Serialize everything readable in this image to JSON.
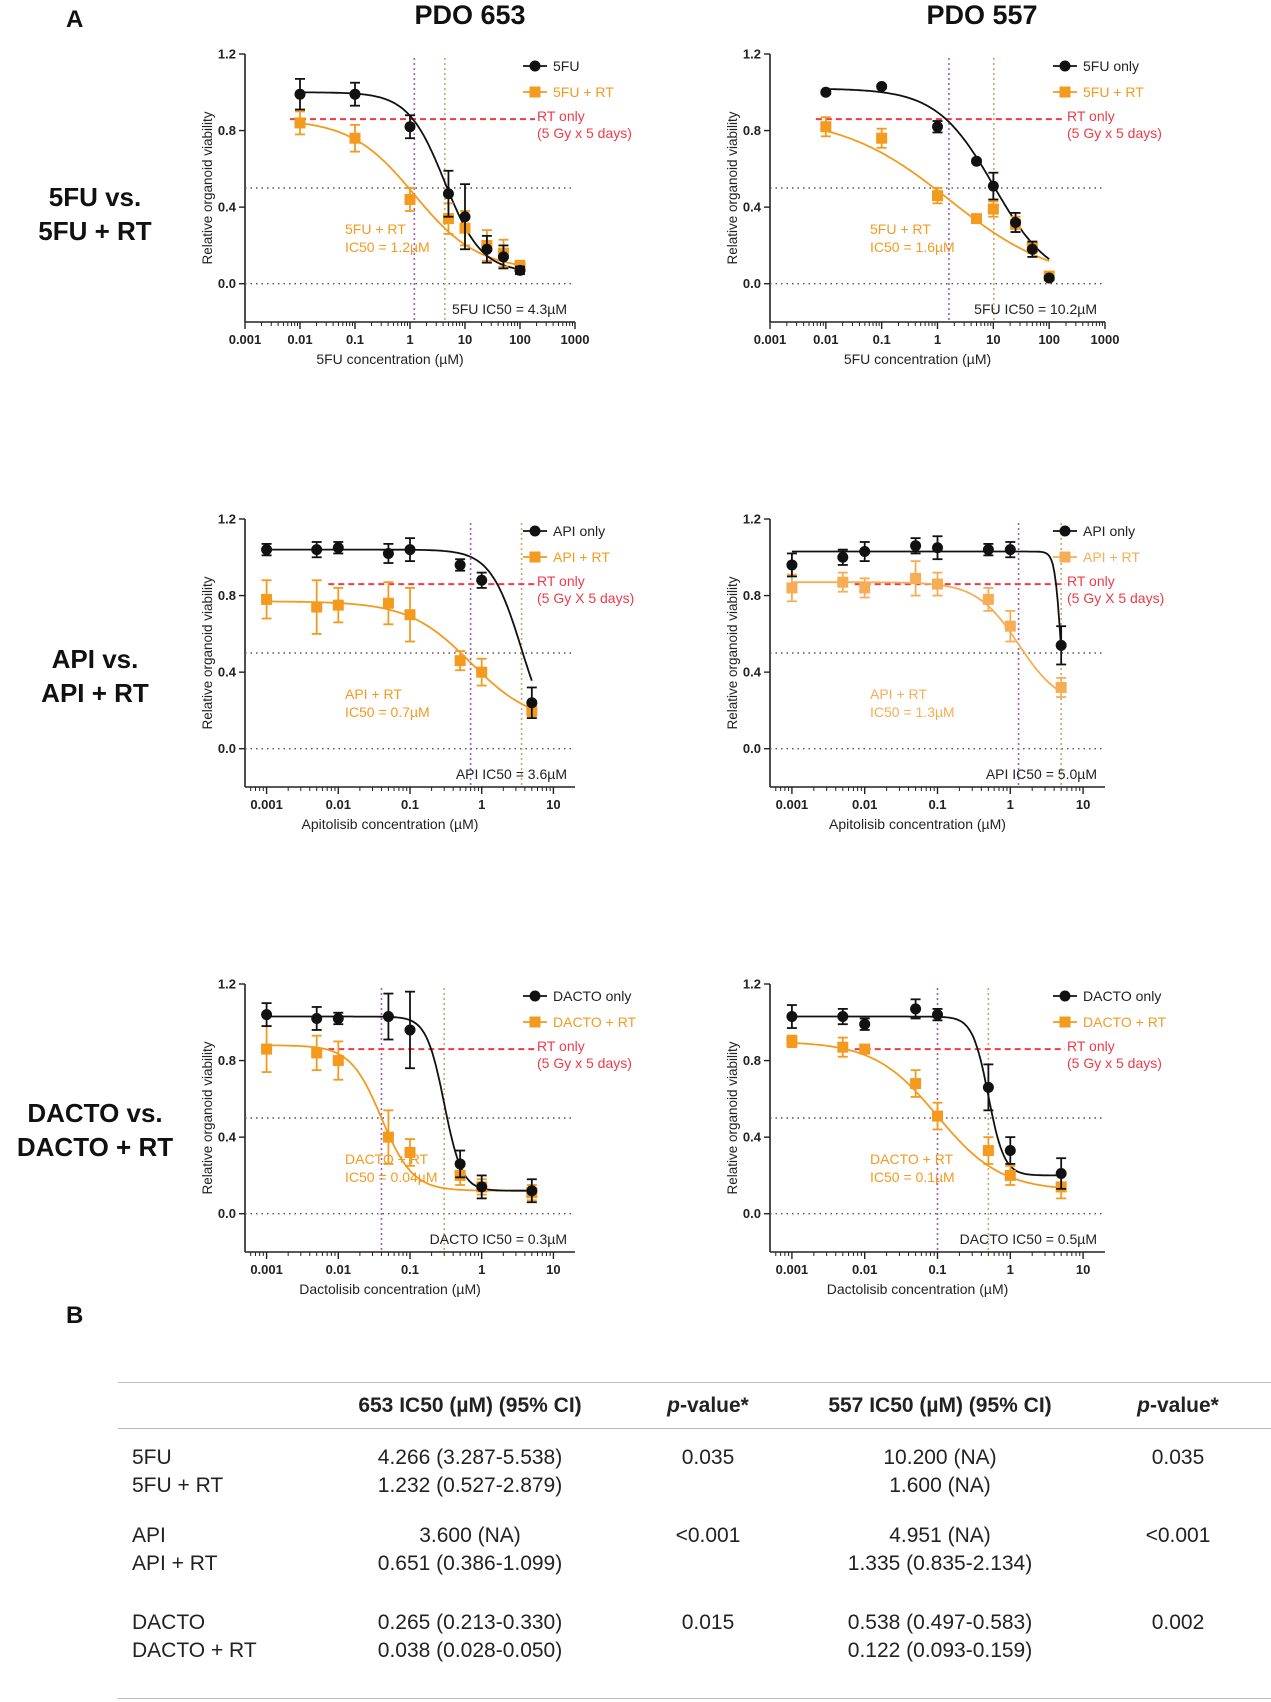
{
  "panel_labels": {
    "a": "A",
    "b": "B"
  },
  "column_titles": [
    "PDO 653",
    "PDO 557"
  ],
  "row_labels": [
    [
      "5FU vs.",
      "5FU + RT"
    ],
    [
      "API vs.",
      "API + RT"
    ],
    [
      "DACTO vs.",
      "DACTO + RT"
    ]
  ],
  "colors": {
    "drug": "#111111",
    "combo": "#f39a1f",
    "combo_light": "#f7ad55",
    "rt": "#ee3b47",
    "ic50_combo_line": "#a05cb8",
    "ic50_drug_line": "#c9a86a",
    "dotted": "#555555"
  },
  "chart_data": [
    {
      "id": "5fu-653",
      "type": "scatter",
      "ylabel": "Relative organoid viability",
      "xlabel": "5FU concentration (µM)",
      "xscale": "log",
      "xlim": [
        0.001,
        1000
      ],
      "ylim": [
        -0.2,
        1.2
      ],
      "xticks": [
        0.001,
        0.01,
        0.1,
        1,
        10,
        100,
        1000
      ],
      "xtick_labels": [
        "0.001",
        "0.01",
        "0.1",
        "1",
        "10",
        "100",
        "1000"
      ],
      "yticks": [
        0.0,
        0.4,
        0.8,
        1.2
      ],
      "ytick_labels": [
        "0.0",
        "0.4",
        "0.8",
        "1.2"
      ],
      "rt_level": 0.86,
      "rt_label": [
        "RT only",
        "(5 Gy x 5 days)"
      ],
      "series": [
        {
          "name": "5FU",
          "top": 1.0,
          "bottom": 0.06,
          "ic50": 4.3,
          "hill": 1.3,
          "x": [
            0.01,
            0.1,
            1,
            5,
            10,
            25,
            50,
            100
          ],
          "y": [
            0.99,
            0.99,
            0.82,
            0.47,
            0.35,
            0.18,
            0.14,
            0.07
          ],
          "err": [
            0.08,
            0.06,
            0.06,
            0.12,
            0.17,
            0.07,
            0.06,
            0.02
          ]
        },
        {
          "name": "5FU + RT",
          "top": 0.86,
          "bottom": 0.07,
          "ic50": 1.2,
          "hill": 0.75,
          "x": [
            0.01,
            0.1,
            1,
            5,
            10,
            25,
            50,
            100
          ],
          "y": [
            0.84,
            0.76,
            0.44,
            0.34,
            0.29,
            0.2,
            0.16,
            0.09
          ],
          "err": [
            0.06,
            0.07,
            0.06,
            0.08,
            0.09,
            0.08,
            0.07,
            0.03
          ]
        }
      ],
      "ic50_labels": {
        "combo": [
          "5FU + RT",
          "IC50 = 1.2µM"
        ],
        "drug": "5FU IC50 = 4.3µM"
      }
    },
    {
      "id": "5fu-557",
      "type": "scatter",
      "ylabel": "Relative organoid viability",
      "xlabel": "5FU concentration (µM)",
      "xscale": "log",
      "xlim": [
        0.001,
        1000
      ],
      "ylim": [
        -0.2,
        1.2
      ],
      "xticks": [
        0.001,
        0.01,
        0.1,
        1,
        10,
        100,
        1000
      ],
      "xtick_labels": [
        "0.001",
        "0.01",
        "0.1",
        "1",
        "10",
        "100",
        "1000"
      ],
      "yticks": [
        0.0,
        0.4,
        0.8,
        1.2
      ],
      "ytick_labels": [
        "0.0",
        "0.4",
        "0.8",
        "1.2"
      ],
      "rt_level": 0.86,
      "rt_label": [
        "RT only",
        "(5 Gy x 5 days)"
      ],
      "series": [
        {
          "name": "5FU only",
          "top": 1.02,
          "bottom": 0.0,
          "ic50": 10.2,
          "hill": 0.85,
          "x": [
            0.01,
            0.1,
            1,
            5,
            10,
            25,
            50,
            100
          ],
          "y": [
            1.0,
            1.03,
            0.82,
            0.64,
            0.51,
            0.32,
            0.18,
            0.03
          ],
          "err": [
            0.01,
            0.01,
            0.03,
            0.01,
            0.07,
            0.05,
            0.04,
            0.01
          ]
        },
        {
          "name": "5FU + RT",
          "top": 0.88,
          "bottom": 0.0,
          "ic50": 1.6,
          "hill": 0.45,
          "x": [
            0.01,
            0.1,
            1,
            5,
            10,
            25,
            50,
            100
          ],
          "y": [
            0.82,
            0.76,
            0.46,
            0.34,
            0.39,
            0.31,
            0.19,
            0.04
          ],
          "err": [
            0.05,
            0.05,
            0.04,
            0.02,
            0.04,
            0.04,
            0.03,
            0.01
          ]
        }
      ],
      "ic50_labels": {
        "combo": [
          "5FU + RT",
          "IC50 = 1.6µM"
        ],
        "drug": "5FU IC50 = 10.2µM"
      }
    },
    {
      "id": "api-653",
      "type": "scatter",
      "ylabel": "Relative organoid viability",
      "xlabel": "Apitolisib concentration (µM)",
      "xscale": "log",
      "xlim": [
        0.0005,
        20
      ],
      "ylim": [
        -0.2,
        1.2
      ],
      "xticks": [
        0.001,
        0.01,
        0.1,
        1,
        10
      ],
      "xtick_labels": [
        "0.001",
        "0.01",
        "0.1",
        "1",
        "10"
      ],
      "yticks": [
        0.0,
        0.4,
        0.8,
        1.2
      ],
      "ytick_labels": [
        "0.0",
        "0.4",
        "0.8",
        "1.2"
      ],
      "rt_level": 0.86,
      "rt_label": [
        "RT only",
        "(5 Gy X 5 days)"
      ],
      "series": [
        {
          "name": "API only",
          "top": 1.04,
          "bottom": 0.0,
          "ic50": 3.6,
          "hill": 2.0,
          "x": [
            0.001,
            0.005,
            0.01,
            0.05,
            0.1,
            0.5,
            1,
            5
          ],
          "y": [
            1.04,
            1.04,
            1.05,
            1.02,
            1.04,
            0.96,
            0.88,
            0.24
          ],
          "err": [
            0.03,
            0.04,
            0.03,
            0.05,
            0.06,
            0.03,
            0.04,
            0.08
          ]
        },
        {
          "name": "API + RT",
          "top": 0.77,
          "bottom": 0.13,
          "ic50": 0.7,
          "hill": 1.0,
          "x": [
            0.001,
            0.005,
            0.01,
            0.05,
            0.1,
            0.5,
            1,
            5
          ],
          "y": [
            0.78,
            0.74,
            0.75,
            0.76,
            0.7,
            0.46,
            0.4,
            0.2
          ],
          "err": [
            0.1,
            0.14,
            0.09,
            0.11,
            0.14,
            0.05,
            0.07,
            0.03
          ]
        }
      ],
      "ic50_labels": {
        "combo": [
          "API + RT",
          "IC50 = 0.7µM"
        ],
        "drug": "API IC50 = 3.6µM"
      }
    },
    {
      "id": "api-557",
      "type": "scatter",
      "ylabel": "Relative organoid viability",
      "xlabel": "Apitolisib concentration (µM)",
      "xscale": "log",
      "xlim": [
        0.0005,
        20
      ],
      "ylim": [
        -0.2,
        1.2
      ],
      "xticks": [
        0.001,
        0.01,
        0.1,
        1,
        10
      ],
      "xtick_labels": [
        "0.001",
        "0.01",
        "0.1",
        "1",
        "10"
      ],
      "yticks": [
        0.0,
        0.4,
        0.8,
        1.2
      ],
      "ytick_labels": [
        "0.0",
        "0.4",
        "0.8",
        "1.2"
      ],
      "rt_level": 0.86,
      "rt_label": [
        "RT only",
        "(5 Gy X 5 days)"
      ],
      "series": [
        {
          "name": "API only",
          "top": 1.03,
          "bottom": 0.0,
          "ic50": 5.0,
          "hill": 10.0,
          "x": [
            0.001,
            0.005,
            0.01,
            0.05,
            0.1,
            0.5,
            1,
            5
          ],
          "y": [
            0.96,
            1.0,
            1.03,
            1.06,
            1.05,
            1.04,
            1.04,
            0.54
          ],
          "err": [
            0.06,
            0.04,
            0.05,
            0.04,
            0.06,
            0.03,
            0.04,
            0.1
          ]
        },
        {
          "name": "API + RT",
          "top": 0.87,
          "bottom": 0.22,
          "ic50": 1.3,
          "hill": 1.5,
          "x": [
            0.001,
            0.005,
            0.01,
            0.05,
            0.1,
            0.5,
            1,
            5
          ],
          "y": [
            0.84,
            0.87,
            0.84,
            0.89,
            0.86,
            0.78,
            0.64,
            0.32
          ],
          "err": [
            0.07,
            0.05,
            0.05,
            0.09,
            0.06,
            0.06,
            0.08,
            0.05
          ]
        }
      ],
      "ic50_labels": {
        "combo": [
          "API + RT",
          "IC50 = 1.3µM"
        ],
        "drug": "API IC50 = 5.0µM"
      }
    },
    {
      "id": "dacto-653",
      "type": "scatter",
      "ylabel": "Relative organoid viability",
      "xlabel": "Dactolisib concentration (µM)",
      "xscale": "log",
      "xlim": [
        0.0005,
        20
      ],
      "ylim": [
        -0.2,
        1.2
      ],
      "xticks": [
        0.001,
        0.01,
        0.1,
        1,
        10
      ],
      "xtick_labels": [
        "0.001",
        "0.01",
        "0.1",
        "1",
        "10"
      ],
      "yticks": [
        0.0,
        0.4,
        0.8,
        1.2
      ],
      "ytick_labels": [
        "0.0",
        "0.4",
        "0.8",
        "1.2"
      ],
      "rt_level": 0.86,
      "rt_label": [
        "RT only",
        "(5 Gy x 5 days)"
      ],
      "series": [
        {
          "name": "DACTO only",
          "top": 1.03,
          "bottom": 0.12,
          "ic50": 0.3,
          "hill": 3.5,
          "x": [
            0.001,
            0.005,
            0.01,
            0.05,
            0.1,
            0.5,
            1,
            5
          ],
          "y": [
            1.04,
            1.02,
            1.02,
            1.03,
            0.96,
            0.26,
            0.14,
            0.12
          ],
          "err": [
            0.06,
            0.06,
            0.03,
            0.12,
            0.2,
            0.07,
            0.06,
            0.06
          ]
        },
        {
          "name": "DACTO + RT",
          "top": 0.88,
          "bottom": 0.12,
          "ic50": 0.04,
          "hill": 2.0,
          "x": [
            0.001,
            0.005,
            0.01,
            0.05,
            0.1,
            0.5,
            1,
            5
          ],
          "y": [
            0.86,
            0.84,
            0.8,
            0.4,
            0.32,
            0.2,
            0.14,
            0.11
          ],
          "err": [
            0.12,
            0.09,
            0.1,
            0.14,
            0.07,
            0.05,
            0.04,
            0.04
          ]
        }
      ],
      "ic50_labels": {
        "combo": [
          "DACTO + RT",
          "IC50 = 0.04µM"
        ],
        "drug": "DACTO IC50 = 0.3µM"
      }
    },
    {
      "id": "dacto-557",
      "type": "scatter",
      "ylabel": "Relative organoid viability",
      "xlabel": "Dactolisib concentration (µM)",
      "xscale": "log",
      "xlim": [
        0.0005,
        20
      ],
      "ylim": [
        -0.2,
        1.2
      ],
      "xticks": [
        0.001,
        0.01,
        0.1,
        1,
        10
      ],
      "xtick_labels": [
        "0.001",
        "0.01",
        "0.1",
        "1",
        "10"
      ],
      "yticks": [
        0.0,
        0.4,
        0.8,
        1.2
      ],
      "ytick_labels": [
        "0.0",
        "0.4",
        "0.8",
        "1.2"
      ],
      "rt_level": 0.86,
      "rt_label": [
        "RT only",
        "(5 Gy x 5 days)"
      ],
      "series": [
        {
          "name": "DACTO only",
          "top": 1.03,
          "bottom": 0.2,
          "ic50": 0.5,
          "hill": 4.0,
          "x": [
            0.001,
            0.005,
            0.01,
            0.05,
            0.1,
            0.5,
            1,
            5
          ],
          "y": [
            1.03,
            1.03,
            0.99,
            1.07,
            1.04,
            0.66,
            0.33,
            0.21
          ],
          "err": [
            0.06,
            0.04,
            0.03,
            0.05,
            0.03,
            0.12,
            0.07,
            0.08
          ]
        },
        {
          "name": "DACTO + RT",
          "top": 0.9,
          "bottom": 0.12,
          "ic50": 0.1,
          "hill": 1.0,
          "x": [
            0.001,
            0.005,
            0.01,
            0.05,
            0.1,
            0.5,
            1,
            5
          ],
          "y": [
            0.9,
            0.87,
            0.86,
            0.68,
            0.51,
            0.33,
            0.2,
            0.14
          ],
          "err": [
            0.03,
            0.05,
            0.02,
            0.07,
            0.07,
            0.07,
            0.05,
            0.06
          ]
        }
      ],
      "ic50_labels": {
        "combo": [
          "DACTO + RT",
          "IC50 = 0.1µM"
        ],
        "drug": "DACTO IC50 = 0.5µM"
      }
    }
  ],
  "table": {
    "headers": [
      "",
      "653 IC50 (µM) (95% CI)",
      "p-value*",
      "557 IC50 (µM) (95% CI)",
      "p-value*"
    ],
    "pvalue_italic": "p",
    "pvalue_rest": "-value*",
    "groups": [
      {
        "rows": [
          {
            "name": "5FU",
            "ic653": "4.266 (3.287-5.538)",
            "ic557": "10.200 (NA)"
          },
          {
            "name": "5FU + RT",
            "ic653": "1.232 (0.527-2.879)",
            "ic557": "1.600 (NA)"
          }
        ],
        "p653": "0.035",
        "p557": "0.035"
      },
      {
        "rows": [
          {
            "name": "API",
            "ic653": "3.600 (NA)",
            "ic557": "4.951 (NA)"
          },
          {
            "name": "API + RT",
            "ic653": "0.651 (0.386-1.099)",
            "ic557": "1.335 (0.835-2.134)"
          }
        ],
        "p653": "<0.001",
        "p557": "<0.001"
      },
      {
        "rows": [
          {
            "name": "DACTO",
            "ic653": "0.265 (0.213-0.330)",
            "ic557": "0.538 (0.497-0.583)"
          },
          {
            "name": "DACTO + RT",
            "ic653": "0.038 (0.028-0.050)",
            "ic557": "0.122 (0.093-0.159)"
          }
        ],
        "p653": "0.015",
        "p557": "0.002"
      }
    ]
  }
}
